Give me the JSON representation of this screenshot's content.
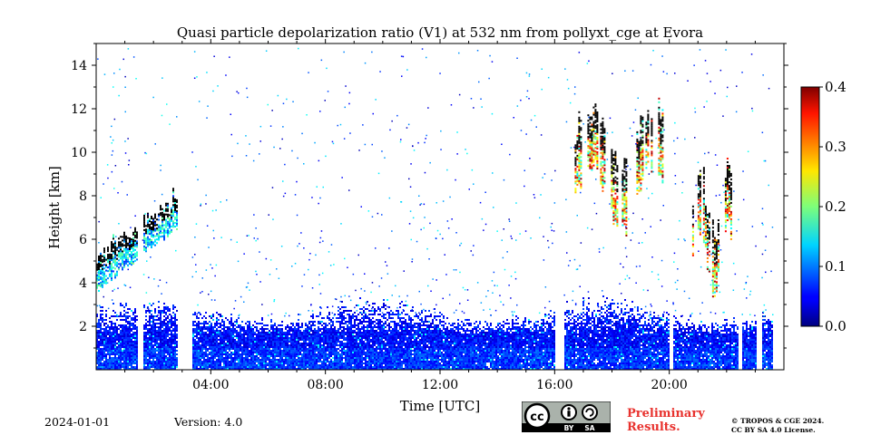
{
  "chart_data": {
    "type": "heatmap",
    "title": "Quasi particle depolarization ratio (V1) at 532 nm from pollyxt_cge at Evora",
    "xlabel": "Time [UTC]",
    "ylabel": "Height [km]",
    "xlim_hours": [
      0,
      24
    ],
    "ylim_km": [
      0,
      15
    ],
    "x_ticks": [
      {
        "value": 4,
        "label": "04:00"
      },
      {
        "value": 8,
        "label": "08:00"
      },
      {
        "value": 12,
        "label": "12:00"
      },
      {
        "value": 16,
        "label": "16:00"
      },
      {
        "value": 20,
        "label": "20:00"
      }
    ],
    "y_ticks": [
      {
        "value": 2,
        "label": "2"
      },
      {
        "value": 4,
        "label": "4"
      },
      {
        "value": 6,
        "label": "6"
      },
      {
        "value": 8,
        "label": "8"
      },
      {
        "value": 10,
        "label": "10"
      },
      {
        "value": 12,
        "label": "12"
      },
      {
        "value": 14,
        "label": "14"
      }
    ],
    "colorbar": {
      "range": [
        0,
        0.4
      ],
      "ticks": [
        {
          "value": 0.0,
          "label": "0.0"
        },
        {
          "value": 0.1,
          "label": "0.1"
        },
        {
          "value": 0.2,
          "label": "0.2"
        },
        {
          "value": 0.3,
          "label": "0.3"
        },
        {
          "value": 0.4,
          "label": "0.4"
        }
      ],
      "colormap": "jet",
      "saturated_color": "#000000"
    },
    "features": [
      {
        "name": "aerosol boundary layer",
        "time_start_h": 0.0,
        "time_end_h": 23.6,
        "height_top_km": 2.5,
        "depol_ratio_typical": 0.05
      },
      {
        "name": "elevated aerosol layer (morning)",
        "time_start_h": 0.0,
        "time_end_h": 3.3,
        "height_bottom_km": 3.6,
        "height_top_km": 9.0,
        "depol_ratio_typical": 0.2
      },
      {
        "name": "cirrus (afternoon)",
        "time_start_h": 16.7,
        "time_end_h": 19.8,
        "height_bottom_km": 6.5,
        "height_top_km": 12.0,
        "depol_ratio_typical": 0.4
      },
      {
        "name": "cloud (evening)",
        "time_start_h": 20.8,
        "time_end_h": 22.2,
        "height_bottom_km": 4.2,
        "height_top_km": 8.5,
        "depol_ratio_typical": 0.4
      }
    ],
    "data_gaps_h": [
      [
        1.4,
        1.6
      ],
      [
        2.8,
        3.3
      ],
      [
        16.0,
        16.3
      ],
      [
        20.0,
        20.1
      ],
      [
        22.4,
        22.5
      ],
      [
        23.0,
        23.2
      ]
    ]
  },
  "footer": {
    "date": "2024-01-01",
    "version": "Version: 4.0",
    "preliminary_line1": "Preliminary",
    "preliminary_line2": "Results.",
    "copyright_line1": "© TROPOS & CGE 2024.",
    "copyright_line2": "CC BY SA 4.0 License.",
    "license_by": "BY",
    "license_sa": "SA"
  },
  "colors": {
    "background": "#ffffff",
    "preliminary": "#e8322e",
    "license_badge": "#aab2ab"
  }
}
